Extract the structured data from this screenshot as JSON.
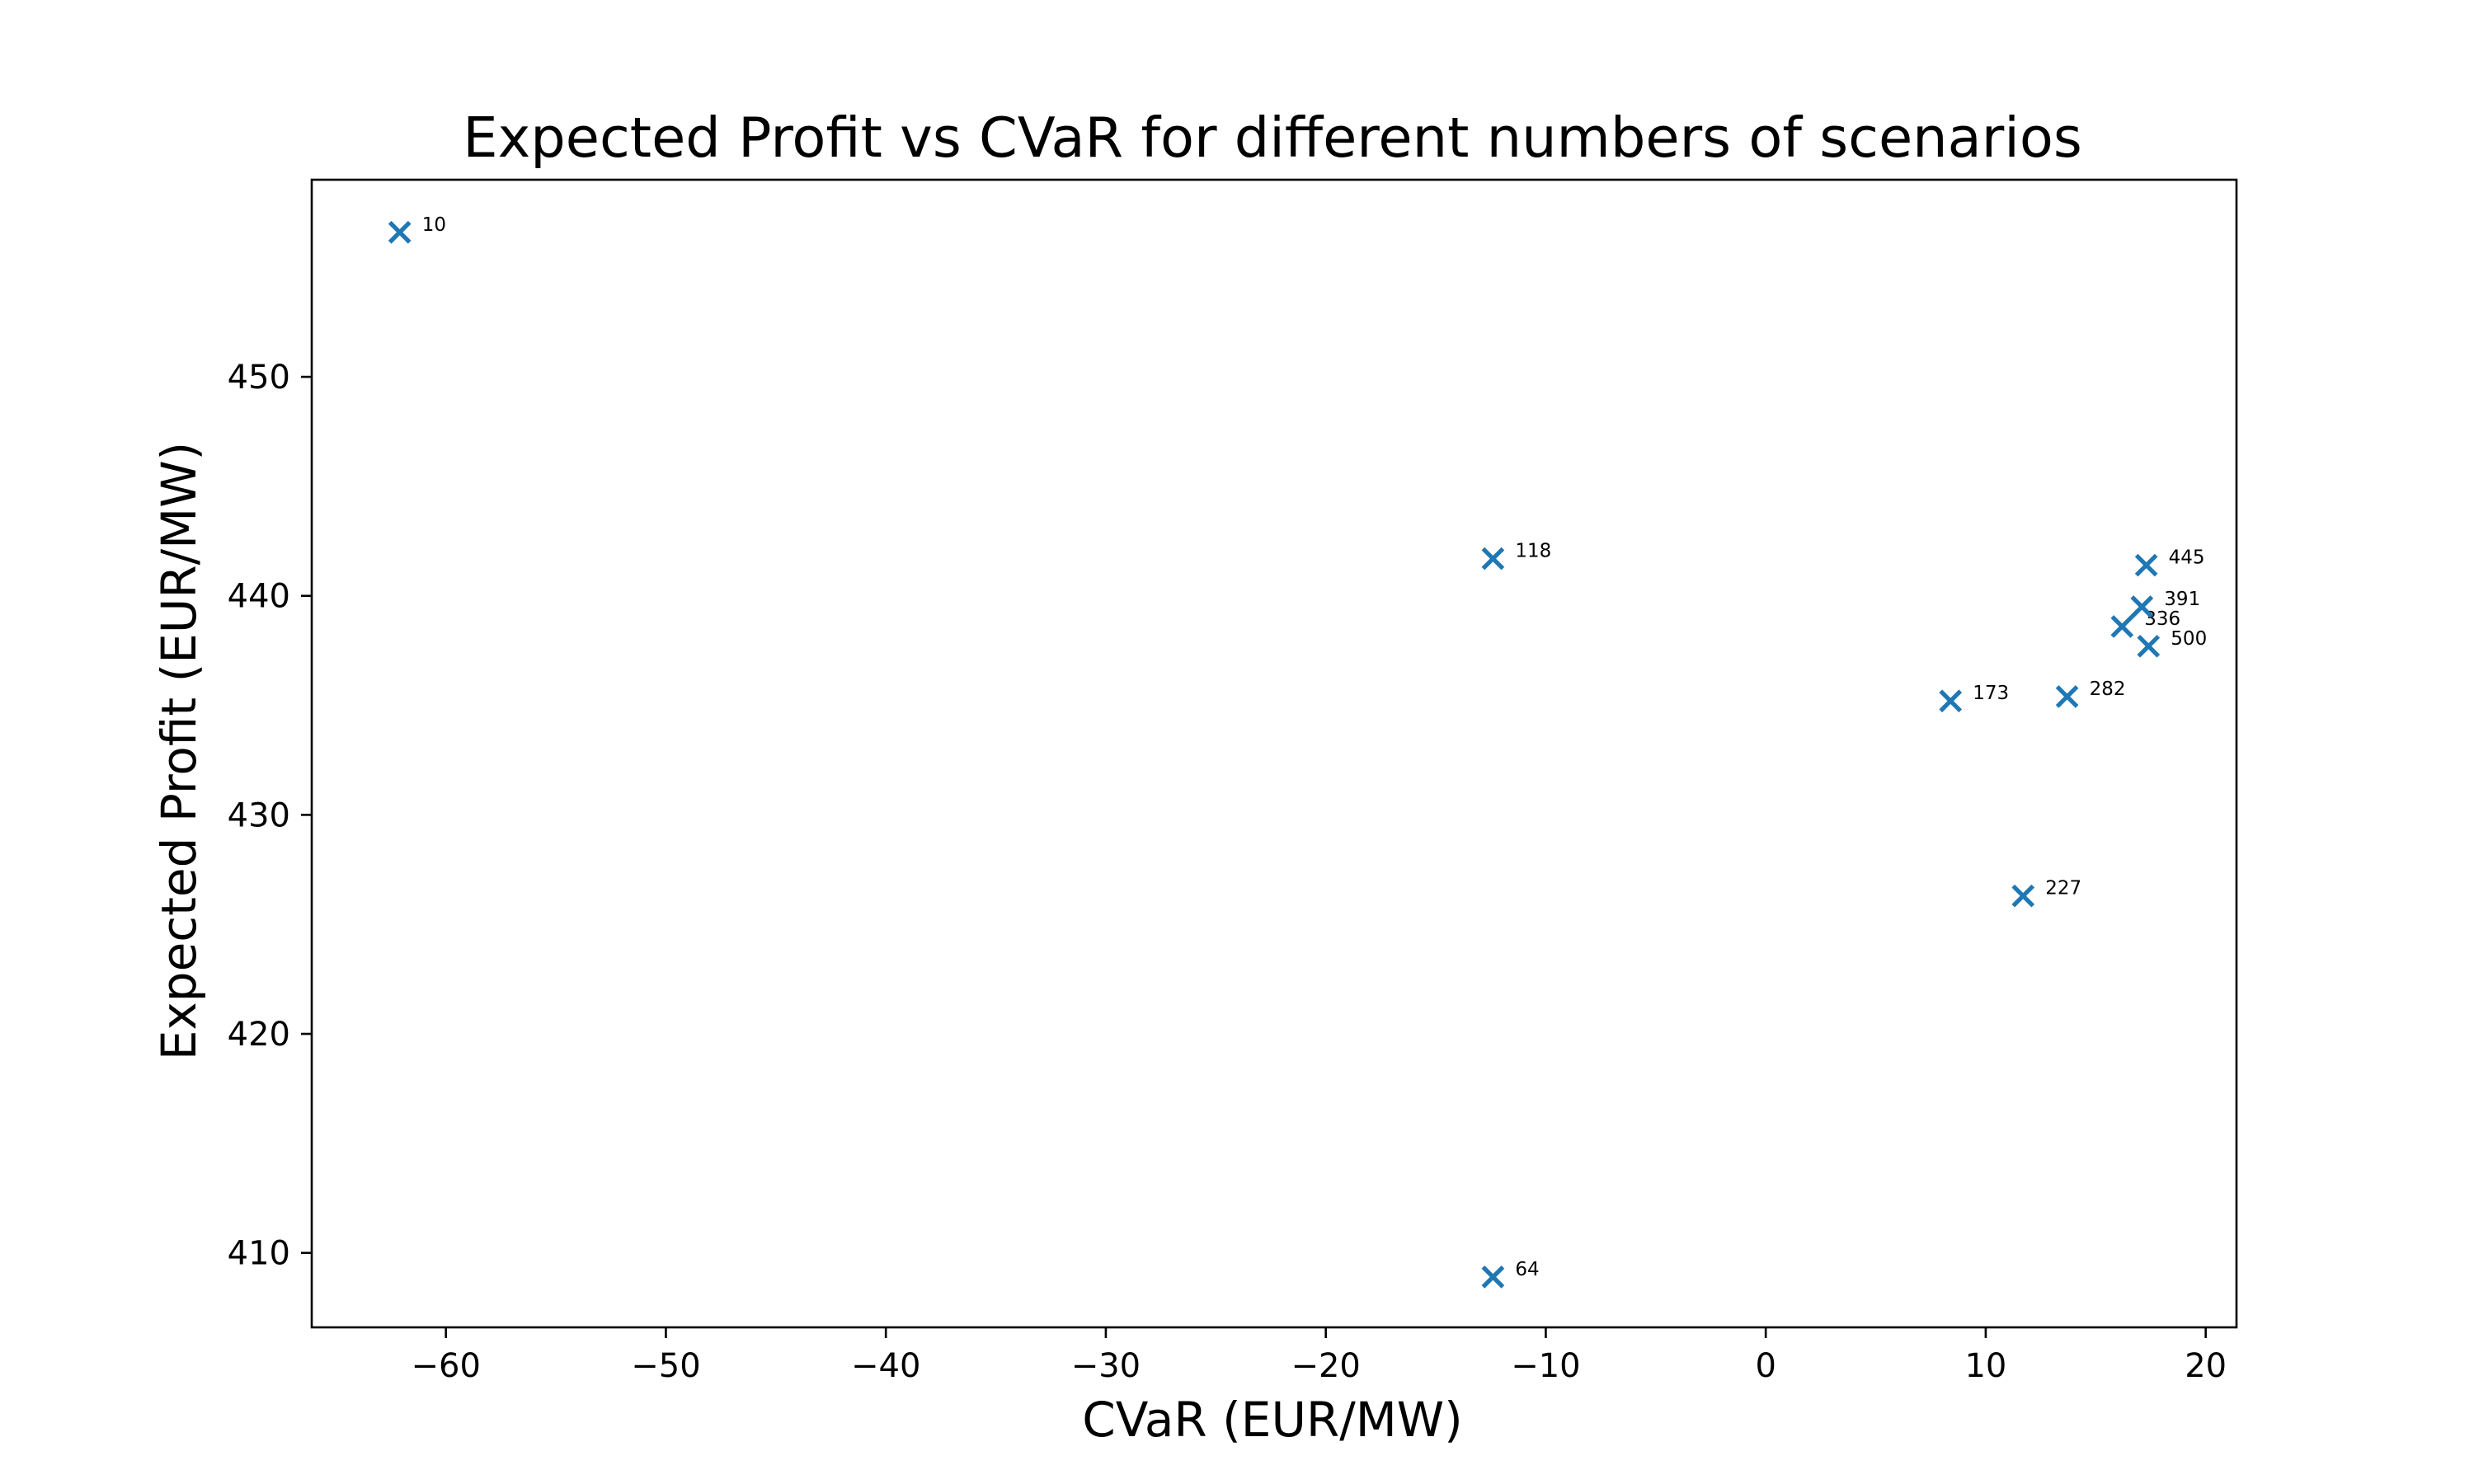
{
  "chart_data": {
    "type": "scatter",
    "title": "Expected Profit vs CVaR for different numbers of scenarios",
    "xlabel": "CVaR (EUR/MW)",
    "ylabel": "Expected Profit (EUR/MW)",
    "xlim": [
      -66.1,
      21.4
    ],
    "ylim": [
      406.6,
      459.0
    ],
    "xticks": [
      -60,
      -50,
      -40,
      -30,
      -20,
      -10,
      0,
      10,
      20
    ],
    "yticks": [
      410,
      420,
      430,
      440,
      450
    ],
    "xtick_labels": [
      "−60",
      "−50",
      "−40",
      "−30",
      "−20",
      "−10",
      "0",
      "10",
      "20"
    ],
    "ytick_labels": [
      "410",
      "420",
      "430",
      "440",
      "450"
    ],
    "marker": "x",
    "color": "#1f77b4",
    "grid": false,
    "points": [
      {
        "label": "10",
        "x": -62.1,
        "y": 456.6
      },
      {
        "label": "64",
        "x": -12.4,
        "y": 408.9
      },
      {
        "label": "118",
        "x": -12.4,
        "y": 441.7
      },
      {
        "label": "173",
        "x": 8.4,
        "y": 435.2
      },
      {
        "label": "227",
        "x": 11.7,
        "y": 426.3
      },
      {
        "label": "282",
        "x": 13.7,
        "y": 435.4
      },
      {
        "label": "336",
        "x": 16.2,
        "y": 438.6
      },
      {
        "label": "391",
        "x": 17.1,
        "y": 439.5
      },
      {
        "label": "445",
        "x": 17.3,
        "y": 441.4
      },
      {
        "label": "500",
        "x": 17.4,
        "y": 437.7
      }
    ]
  }
}
